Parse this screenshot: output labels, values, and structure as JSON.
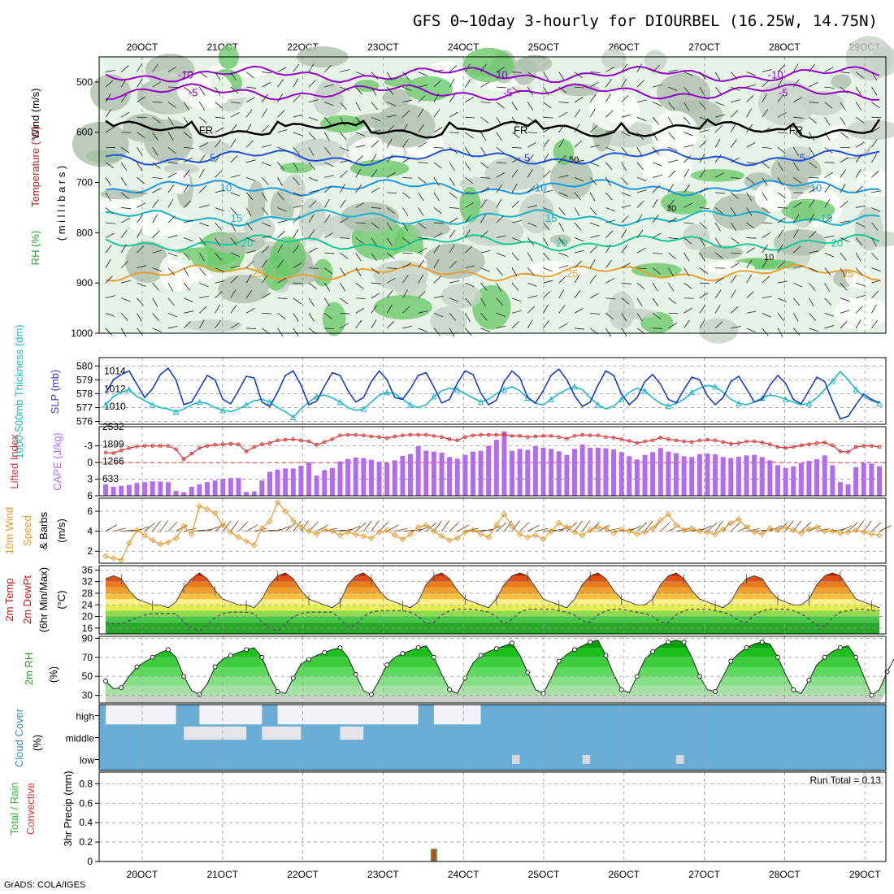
{
  "title": "GFS 0~10day 3-hourly for DIOURBEL (16.25W, 14.75N)",
  "credit": "GrADS: COLA/IGES",
  "chart_data": [
    {
      "panel": "upper-air",
      "type": "contour",
      "ylabel_parts": [
        "RH (%)",
        "Temperature (°C)",
        "Wind (m/s)"
      ],
      "ylabel2": "( m i l l i b a r s )",
      "y_ticks": [
        500,
        600,
        700,
        800,
        900,
        1000
      ],
      "x_ticks": [
        "20OCT",
        "21OCT",
        "22OCT",
        "23OCT",
        "24OCT",
        "25OCT",
        "26OCT",
        "27OCT",
        "28OCT",
        "29OCT"
      ],
      "isotherms": [
        {
          "label": "-10",
          "level": 485,
          "color": "#9400c8"
        },
        {
          "label": "-5",
          "level": 520,
          "color": "#9400c8"
        },
        {
          "label": "FR",
          "level": 595,
          "color": "#000000"
        },
        {
          "label": "5",
          "level": 650,
          "color": "#1e50dc"
        },
        {
          "label": "10",
          "level": 710,
          "color": "#1e96e6"
        },
        {
          "label": "15",
          "level": 770,
          "color": "#14b4c8"
        },
        {
          "label": "20",
          "level": 820,
          "color": "#14c896"
        },
        {
          "label": "25",
          "level": 880,
          "color": "#e6a032"
        }
      ],
      "rh_labels": [
        "50",
        "30",
        "10"
      ]
    },
    {
      "panel": "thickness-slp",
      "type": "line",
      "ylabel_left": "1000-500mb Thickness (dm)",
      "ylabel_right": "SLP (mb)",
      "thickness_ticks": [
        576,
        577,
        578,
        579,
        580
      ],
      "slp_ticks": [
        1010,
        1012,
        1014
      ],
      "thickness": [
        577.2,
        577.8,
        578.1,
        578.3,
        577.8,
        577.5,
        577.2,
        577.0,
        576.9,
        576.7,
        576.9,
        577.2,
        577.4,
        577.3,
        577.0,
        576.8,
        576.7,
        576.9,
        577.2,
        577.5,
        577.6,
        577.4,
        577.0,
        576.7,
        576.3,
        576.9,
        577.4,
        577.8,
        577.9,
        577.7,
        577.4,
        577.0,
        576.8,
        576.9,
        577.4,
        577.9,
        578.1,
        578.0,
        577.6,
        577.2,
        577.0,
        577.2,
        577.8,
        578.2,
        578.4,
        578.3,
        578.0,
        577.7,
        577.4,
        577.6,
        578.0,
        578.3,
        578.5,
        578.2,
        577.7,
        577.3,
        577.2,
        577.6,
        578.0,
        578.3,
        578.5,
        578.3,
        577.7,
        577.2,
        576.9,
        577.1,
        577.6,
        578.1,
        578.4,
        578.2,
        577.7,
        577.3,
        577.1,
        577.3,
        577.6,
        578.1,
        578.4,
        578.6,
        578.5,
        578.1,
        577.6,
        577.3,
        577.2,
        577.4,
        577.7,
        577.9,
        577.8,
        577.6,
        577.4,
        577.2,
        577.3,
        577.7,
        578.3,
        578.9,
        579.6,
        579.0,
        578.3,
        577.8,
        577.5,
        577.3
      ],
      "slp": [
        1011.5,
        1013.0,
        1013.6,
        1014.0,
        1012.5,
        1011.0,
        1012.0,
        1013.6,
        1014.3,
        1013.0,
        1010.2,
        1010.5,
        1012.0,
        1013.5,
        1013.0,
        1010.8,
        1010.3,
        1011.8,
        1013.4,
        1013.2,
        1010.5,
        1010.0,
        1011.6,
        1013.5,
        1014.0,
        1012.4,
        1010.2,
        1010.6,
        1012.3,
        1013.8,
        1013.5,
        1011.8,
        1010.5,
        1011.0,
        1012.8,
        1014.0,
        1013.0,
        1011.0,
        1010.8,
        1012.0,
        1013.5,
        1013.8,
        1012.2,
        1010.4,
        1010.8,
        1012.6,
        1014.0,
        1013.6,
        1011.5,
        1010.2,
        1010.7,
        1012.8,
        1014.0,
        1013.2,
        1011.0,
        1010.4,
        1011.8,
        1013.5,
        1014.2,
        1013.0,
        1011.2,
        1010.0,
        1010.5,
        1012.4,
        1014.0,
        1013.5,
        1011.4,
        1010.2,
        1011.0,
        1012.8,
        1013.6,
        1012.5,
        1010.8,
        1010.4,
        1011.9,
        1013.3,
        1013.0,
        1011.2,
        1010.2,
        1011.0,
        1012.8,
        1013.4,
        1012.0,
        1010.5,
        1010.8,
        1012.4,
        1013.5,
        1012.6,
        1010.8,
        1010.3,
        1011.8,
        1013.3,
        1012.8,
        1010.6,
        1008.6,
        1008.9,
        1010.2,
        1011.4,
        1010.8,
        1010.4
      ]
    },
    {
      "panel": "instability",
      "type": "bar+line",
      "ylabel_left": "Lifted Index",
      "ylabel_right": "CAPE (J/kg)",
      "li_ticks": [
        -3,
        0,
        3,
        6
      ],
      "cape_ticks": [
        633,
        1266,
        1899,
        2532
      ],
      "cape": [
        420,
        330,
        360,
        400,
        470,
        500,
        530,
        520,
        500,
        180,
        130,
        330,
        420,
        500,
        560,
        620,
        650,
        650,
        140,
        160,
        560,
        880,
        960,
        1000,
        1000,
        1100,
        1220,
        740,
        940,
        1020,
        1260,
        1350,
        1400,
        1380,
        1320,
        1250,
        1200,
        1300,
        1460,
        1530,
        1820,
        1650,
        1620,
        1580,
        1420,
        1360,
        1500,
        1620,
        1650,
        1830,
        2050,
        2360,
        1650,
        1720,
        1680,
        1820,
        1760,
        1720,
        1630,
        1500,
        1720,
        1880,
        1760,
        1760,
        1740,
        1700,
        1600,
        1450,
        1330,
        1500,
        1600,
        1750,
        1620,
        1560,
        1450,
        1420,
        1520,
        1550,
        1520,
        1420,
        1380,
        1430,
        1480,
        1500,
        1420,
        1300,
        1120,
        1020,
        1080,
        1200,
        1280,
        1340,
        1480,
        1120,
        500,
        420,
        1050,
        1200,
        1180,
        1080
      ],
      "li": [
        -1.8,
        -1.7,
        -2.2,
        -2.6,
        -2.9,
        -3.0,
        -3.0,
        -3.0,
        -3.0,
        -2.4,
        -0.6,
        -1.6,
        -2.6,
        -3.0,
        -3.2,
        -3.3,
        -3.4,
        -3.3,
        -2.0,
        -2.8,
        -3.3,
        -3.5,
        -4.0,
        -4.1,
        -4.2,
        -4.0,
        -3.8,
        -3.2,
        -3.7,
        -4.2,
        -4.9,
        -5.0,
        -5.0,
        -4.9,
        -4.7,
        -4.6,
        -4.4,
        -4.7,
        -4.9,
        -5.0,
        -5.0,
        -5.0,
        -4.8,
        -4.6,
        -4.2,
        -4.0,
        -4.6,
        -4.9,
        -5.0,
        -5.0,
        -5.0,
        -5.0,
        -4.8,
        -4.8,
        -4.6,
        -4.7,
        -4.8,
        -4.8,
        -4.6,
        -4.3,
        -4.8,
        -5.0,
        -4.9,
        -4.9,
        -4.6,
        -4.5,
        -4.2,
        -3.9,
        -3.5,
        -3.8,
        -4.0,
        -4.5,
        -4.2,
        -4.0,
        -3.8,
        -3.7,
        -4.0,
        -4.1,
        -4.0,
        -3.7,
        -3.4,
        -3.5,
        -3.8,
        -3.8,
        -3.6,
        -3.3,
        -2.8,
        -2.6,
        -2.8,
        -3.1,
        -3.3,
        -3.5,
        -3.6,
        -3.1,
        -2.0,
        -1.9,
        -2.8,
        -3.0,
        -3.0,
        -2.8
      ]
    },
    {
      "panel": "wind-10m",
      "type": "line",
      "ylabel": "10m Wind Speed & Barbs (m/s)",
      "ylabel_parts": [
        "10m Wind",
        "Speed",
        "& Barbs",
        "(m/s)"
      ],
      "y_ticks": [
        2,
        4,
        6
      ],
      "speed": [
        1.5,
        1.3,
        1.1,
        2.8,
        4.1,
        3.6,
        3.1,
        2.7,
        2.9,
        3.3,
        4.5,
        3.7,
        6.5,
        6.2,
        5.8,
        4.6,
        3.9,
        3.4,
        3.0,
        2.6,
        4.3,
        5.0,
        6.9,
        6.0,
        5.1,
        4.4,
        4.0,
        3.7,
        4.2,
        4.0,
        3.6,
        3.9,
        3.7,
        3.5,
        3.3,
        3.9,
        4.1,
        3.6,
        3.2,
        3.7,
        4.4,
        4.6,
        4.0,
        3.5,
        3.1,
        3.3,
        3.9,
        4.1,
        3.7,
        3.4,
        4.6,
        5.7,
        4.5,
        3.7,
        3.4,
        3.6,
        3.2,
        4.0,
        4.8,
        4.4,
        3.9,
        3.6,
        4.1,
        4.4,
        4.3,
        3.8,
        4.2,
        4.0,
        3.7,
        3.9,
        4.3,
        5.1,
        5.7,
        4.6,
        4.1,
        4.3,
        4.0,
        3.9,
        3.7,
        4.2,
        4.8,
        5.2,
        4.4,
        3.9,
        3.7,
        4.3,
        4.1,
        4.4,
        4.1,
        3.8,
        4.2,
        4.4,
        4.0,
        4.0,
        3.8,
        3.9,
        4.1,
        3.9,
        3.7,
        3.6
      ]
    },
    {
      "panel": "temp-2m",
      "type": "area",
      "ylabel_parts": [
        "2m Temp",
        "2m DewPt",
        "(6hr Min/Max)",
        "(°C)"
      ],
      "y_ticks": [
        16,
        20,
        24,
        28,
        32,
        36
      ],
      "temp": [
        33,
        34,
        33,
        29,
        26,
        25,
        24,
        24,
        23,
        25,
        30,
        33,
        35,
        33,
        29,
        26,
        25,
        24,
        24,
        23,
        26,
        31,
        34,
        35,
        33,
        29,
        26,
        25,
        24,
        23,
        25,
        31,
        34,
        35,
        33,
        29,
        26,
        25,
        24,
        23,
        25,
        31,
        34,
        35,
        33,
        29,
        26,
        25,
        24,
        23,
        26,
        31,
        34,
        35,
        34,
        30,
        26,
        25,
        24,
        23,
        26,
        31,
        34,
        35,
        33,
        29,
        26,
        25,
        24,
        24,
        26,
        31,
        34,
        35,
        33,
        29,
        26,
        25,
        24,
        23,
        25,
        30,
        33,
        34,
        33,
        29,
        26,
        25,
        24,
        24,
        26,
        31,
        34,
        35,
        34,
        30,
        26,
        25,
        24,
        23
      ],
      "dewpt": [
        18,
        17.5,
        17.5,
        18.5,
        19.5,
        20.5,
        21,
        21,
        21,
        21,
        18,
        16,
        15,
        17,
        19.5,
        21,
        21.5,
        21.5,
        21.5,
        21,
        18,
        16,
        15,
        17.5,
        20,
        21,
        21.5,
        21.5,
        21.5,
        21.5,
        19,
        16.5,
        17,
        20,
        21.5,
        22,
        22,
        22,
        22,
        21.5,
        20,
        17.5,
        18,
        20.5,
        22,
        22.5,
        22.5,
        22.5,
        22,
        21.5,
        20,
        17.5,
        19,
        21.5,
        22.5,
        22.5,
        22.5,
        22.5,
        22,
        21.5,
        20.5,
        18.5,
        18,
        20.5,
        22,
        22.5,
        22.5,
        22,
        21.5,
        21,
        20,
        18,
        18,
        20.5,
        22,
        22.5,
        22.5,
        22.5,
        22,
        21.5,
        20.5,
        18.5,
        18,
        20.5,
        22,
        22.5,
        22.5,
        22.5,
        22,
        21,
        19,
        17,
        16.5,
        19.5,
        21.5,
        22,
        22.5,
        22.5,
        22,
        22
      ]
    },
    {
      "panel": "rh-2m",
      "type": "area",
      "ylabel": "2m RH (%)",
      "y_ticks": [
        30,
        50,
        70,
        90
      ],
      "rh": [
        45,
        37,
        38,
        50,
        60,
        65,
        70,
        75,
        78,
        70,
        50,
        35,
        31,
        42,
        60,
        68,
        72,
        75,
        78,
        80,
        70,
        50,
        34,
        32,
        48,
        63,
        68,
        72,
        75,
        78,
        80,
        70,
        52,
        35,
        31,
        46,
        62,
        70,
        74,
        77,
        80,
        82,
        70,
        52,
        36,
        32,
        48,
        64,
        72,
        76,
        79,
        82,
        85,
        72,
        54,
        36,
        32,
        48,
        66,
        73,
        78,
        82,
        86,
        88,
        72,
        52,
        36,
        33,
        50,
        68,
        76,
        82,
        86,
        88,
        86,
        70,
        50,
        36,
        34,
        50,
        66,
        74,
        80,
        84,
        86,
        84,
        70,
        52,
        36,
        32,
        46,
        62,
        70,
        76,
        80,
        82,
        70,
        50,
        30,
        36,
        55,
        70,
        80,
        88,
        90
      ]
    },
    {
      "panel": "cloud-cover",
      "type": "heatmap",
      "ylabel": "Cloud Cover (%)",
      "levels": [
        "high",
        "middle",
        "low"
      ]
    },
    {
      "panel": "precip",
      "type": "bar",
      "ylabel_parts": [
        "Total / Rain",
        "Convective",
        "3hr Precip (mm)"
      ],
      "y_ticks": [
        0,
        0.2,
        0.4,
        0.6,
        0.8
      ],
      "y_tick_labels": [
        "0",
        "0.2",
        "0.4",
        "0.6",
        "0.8"
      ],
      "run_total_label": "Run Total = 0.13",
      "precip": [
        {
          "step": 42,
          "total": 0.13,
          "convective": 0.13
        }
      ]
    }
  ]
}
